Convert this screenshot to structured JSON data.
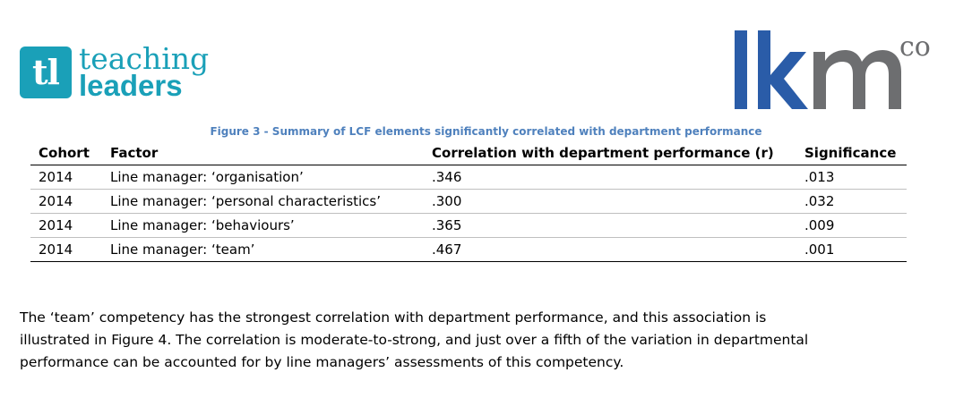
{
  "logos": {
    "teaching_leaders": {
      "mark": "tl",
      "line1": "teaching",
      "line2": "leaders",
      "color": "#1aa0b8"
    },
    "lkm": {
      "letters": "lkm",
      "superscript": "co",
      "color_blue": "#2a5ca8",
      "color_grey": "#6d6e70"
    }
  },
  "figure": {
    "caption": "Figure 3 - Summary of LCF elements significantly correlated with department performance",
    "columns": [
      "Cohort",
      "Factor",
      "Correlation with department performance (r)",
      "Significance"
    ],
    "rows": [
      {
        "cohort": "2014",
        "factor": "Line manager: ‘organisation’",
        "correlation": ".346",
        "significance": ".013"
      },
      {
        "cohort": "2014",
        "factor": "Line manager: ‘personal characteristics’",
        "correlation": ".300",
        "significance": ".032"
      },
      {
        "cohort": "2014",
        "factor": "Line manager: ‘behaviours’",
        "correlation": ".365",
        "significance": ".009"
      },
      {
        "cohort": "2014",
        "factor": "Line manager: ‘team’",
        "correlation": ".467",
        "significance": ".001"
      }
    ]
  },
  "body_text": {
    "lines": [
      "The ‘team’ competency has the strongest correlation with department performance, and this association is",
      "illustrated in Figure 4. The correlation is moderate-to-strong, and just over a fifth of the variation in departmental",
      "performance can be accounted for by line managers’ assessments of this competency."
    ]
  }
}
